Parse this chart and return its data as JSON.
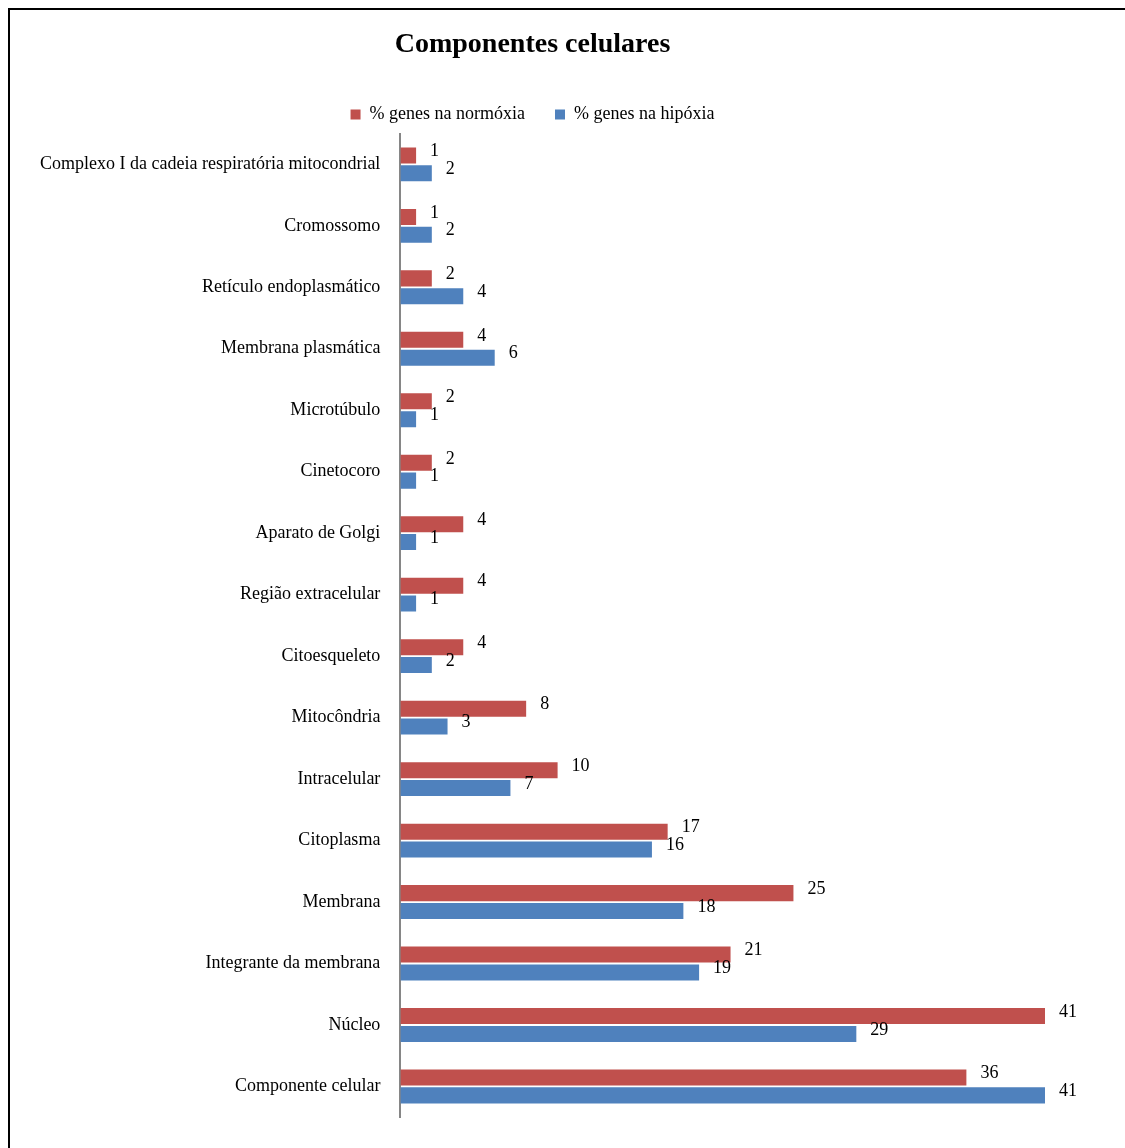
{
  "chart_data": {
    "type": "bar",
    "title": "Componentes celulares",
    "orientation": "horizontal",
    "legend": "top",
    "data_labels": true,
    "tick_labels": "y",
    "xlim": [
      0,
      41
    ],
    "categories": [
      "Complexo I da cadeia respiratória mitocondrial",
      "Cromossomo",
      "Retículo endoplasmático",
      "Membrana plasmática",
      "Microtúbulo",
      "Cinetocoro",
      "Aparato de Golgi",
      "Região extracelular",
      "Citoesqueleto",
      "Mitocôndria",
      "Intracelular",
      "Citoplasma",
      "Membrana",
      "Integrante da membrana",
      "Núcleo",
      "Componente celular"
    ],
    "series": [
      {
        "name": "% genes na normóxia",
        "color": "#c0504d",
        "values": [
          1,
          1,
          2,
          4,
          2,
          2,
          4,
          4,
          4,
          8,
          10,
          17,
          25,
          21,
          41,
          36
        ]
      },
      {
        "name": "% genes na hipóxia",
        "color": "#4f81bd",
        "values": [
          2,
          2,
          4,
          6,
          1,
          1,
          1,
          1,
          2,
          3,
          7,
          16,
          18,
          19,
          29,
          41
        ]
      }
    ]
  }
}
